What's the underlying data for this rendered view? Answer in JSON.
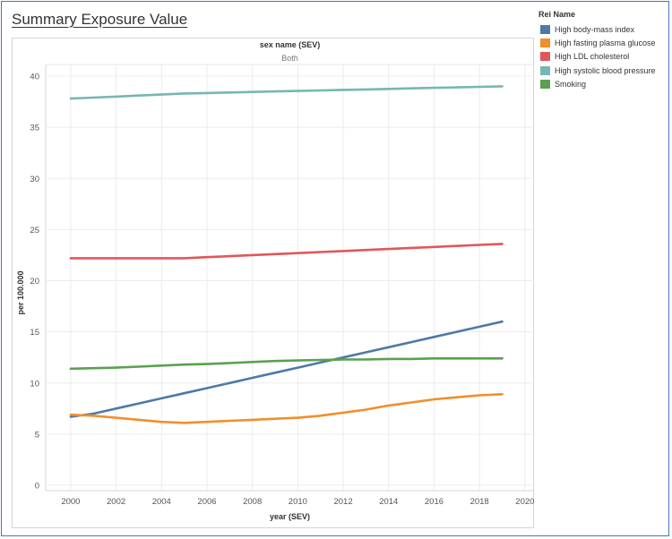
{
  "title": "Summary Exposure Value",
  "chart_data": {
    "type": "line",
    "facet_title": "sex name (SEV)",
    "facet_value": "Both",
    "xlabel": "year (SEV)",
    "ylabel": "per 100.000",
    "xlim": [
      1998.9,
      2020.4
    ],
    "ylim": [
      0,
      40
    ],
    "x_ticks": [
      2000,
      2002,
      2004,
      2006,
      2008,
      2010,
      2012,
      2014,
      2016,
      2018,
      2020
    ],
    "y_ticks": [
      0,
      5,
      10,
      15,
      20,
      25,
      30,
      35,
      40
    ],
    "grid": true,
    "legend_position": "right",
    "legend_title": "Rei Name",
    "x": [
      2000,
      2001,
      2002,
      2003,
      2004,
      2005,
      2006,
      2007,
      2008,
      2009,
      2010,
      2011,
      2012,
      2013,
      2014,
      2015,
      2016,
      2017,
      2018,
      2019
    ],
    "series": [
      {
        "name": "High body-mass index",
        "color": "#4e79a7",
        "values": [
          6.7,
          7.0,
          7.5,
          8.0,
          8.5,
          9.0,
          9.5,
          10.0,
          10.5,
          11.0,
          11.5,
          12.0,
          12.5,
          13.0,
          13.5,
          14.0,
          14.5,
          15.0,
          15.5,
          16.0
        ]
      },
      {
        "name": "High fasting plasma glucose",
        "color": "#f28e2b",
        "values": [
          6.9,
          6.8,
          6.6,
          6.4,
          6.2,
          6.1,
          6.2,
          6.3,
          6.4,
          6.5,
          6.6,
          6.8,
          7.1,
          7.4,
          7.8,
          8.1,
          8.4,
          8.6,
          8.8,
          8.9
        ]
      },
      {
        "name": "High LDL cholesterol",
        "color": "#e15759",
        "values": [
          22.2,
          22.2,
          22.2,
          22.2,
          22.2,
          22.2,
          22.3,
          22.4,
          22.5,
          22.6,
          22.7,
          22.8,
          22.9,
          23.0,
          23.1,
          23.2,
          23.3,
          23.4,
          23.5,
          23.6
        ]
      },
      {
        "name": "High systolic blood pressure",
        "color": "#76b7b2",
        "values": [
          37.8,
          37.9,
          38.0,
          38.1,
          38.2,
          38.3,
          38.35,
          38.4,
          38.45,
          38.5,
          38.55,
          38.6,
          38.65,
          38.7,
          38.75,
          38.8,
          38.85,
          38.9,
          38.95,
          39.0
        ]
      },
      {
        "name": "Smoking",
        "color": "#59a14f",
        "values": [
          11.4,
          11.45,
          11.5,
          11.6,
          11.7,
          11.8,
          11.85,
          11.95,
          12.05,
          12.15,
          12.2,
          12.25,
          12.3,
          12.3,
          12.35,
          12.35,
          12.4,
          12.4,
          12.4,
          12.4
        ]
      }
    ]
  }
}
